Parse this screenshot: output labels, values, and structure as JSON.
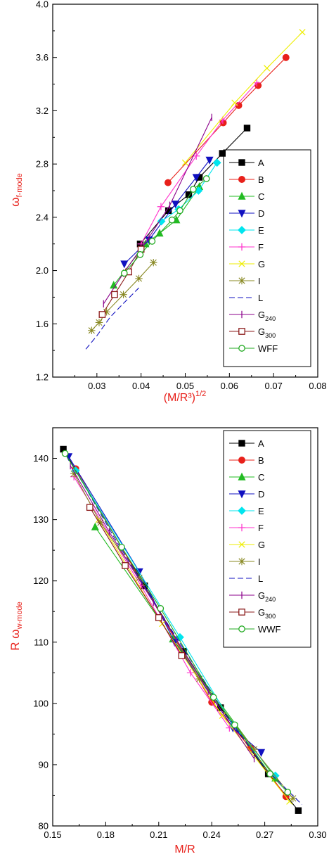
{
  "chart_data": [
    {
      "type": "line",
      "xlabel": "(M/R³)",
      "xlabel_sup": "1/2",
      "ylabel": "ω",
      "ylabel_sub": "f-mode",
      "xlim": [
        0.02,
        0.08
      ],
      "ylim": [
        1.2,
        4.0
      ],
      "xticks": [
        0.03,
        0.04,
        0.05,
        0.06,
        0.07,
        0.08
      ],
      "xtick_labels": [
        "0.03",
        "0.04",
        "0.05",
        "0.06",
        "0.07",
        "0.08"
      ],
      "yticks": [
        1.2,
        1.6,
        2.0,
        2.4,
        2.8,
        3.2,
        3.6,
        4.0
      ],
      "ytick_labels": [
        "1.2",
        "1.6",
        "2.0",
        "2.4",
        "2.8",
        "3.2",
        "3.6",
        "4.0"
      ],
      "legend_position": "right",
      "grid": false,
      "series": [
        {
          "name": "A",
          "sub": "",
          "color": "#000000",
          "marker": "square-filled",
          "x": [
            0.0398,
            0.0462,
            0.0508,
            0.0532,
            0.0584,
            0.064
          ],
          "y": [
            2.2,
            2.45,
            2.57,
            2.7,
            2.88,
            3.07
          ]
        },
        {
          "name": "B",
          "sub": "",
          "color": "#e8201a",
          "marker": "circle-filled",
          "x": [
            0.0461,
            0.0586,
            0.0621,
            0.0665,
            0.0728
          ],
          "y": [
            2.66,
            3.11,
            3.24,
            3.39,
            3.6
          ]
        },
        {
          "name": "C",
          "sub": "",
          "color": "#22bb22",
          "marker": "triangle-up-filled",
          "x": [
            0.0338,
            0.041,
            0.0442,
            0.048,
            0.0532
          ],
          "y": [
            1.89,
            2.2,
            2.28,
            2.38,
            2.63
          ]
        },
        {
          "name": "D",
          "sub": "",
          "color": "#1010c0",
          "marker": "triangle-down-filled",
          "x": [
            0.0362,
            0.0418,
            0.0478,
            0.0525,
            0.0555
          ],
          "y": [
            2.05,
            2.23,
            2.5,
            2.7,
            2.83
          ]
        },
        {
          "name": "E",
          "sub": "",
          "color": "#00e5ee",
          "marker": "diamond-filled",
          "x": [
            0.0446,
            0.0485,
            0.053,
            0.0572
          ],
          "y": [
            2.37,
            2.46,
            2.6,
            2.81
          ]
        },
        {
          "name": "F",
          "sub": "",
          "color": "#ff33cc",
          "marker": "plus",
          "x": [
            0.04,
            0.0445,
            0.0525,
            0.0585,
            0.0662
          ],
          "y": [
            2.2,
            2.48,
            2.86,
            3.13,
            3.41
          ]
        },
        {
          "name": "G",
          "sub": "",
          "color": "#eeee00",
          "marker": "x",
          "x": [
            0.05,
            0.0612,
            0.0685,
            0.0765
          ],
          "y": [
            2.81,
            3.26,
            3.52,
            3.79
          ]
        },
        {
          "name": "I",
          "sub": "",
          "color": "#888822",
          "marker": "star",
          "x": [
            0.0288,
            0.0305,
            0.0322,
            0.036,
            0.0395,
            0.0428
          ],
          "y": [
            1.55,
            1.61,
            1.69,
            1.82,
            1.94,
            2.06
          ]
        },
        {
          "name": "L",
          "sub": "",
          "color": "#1010c0",
          "marker": "hline",
          "x": [
            0.0275,
            0.03,
            0.033,
            0.0362,
            0.0395
          ],
          "y": [
            1.41,
            1.51,
            1.65,
            1.76,
            1.87
          ]
        },
        {
          "name": "G",
          "sub": "240",
          "color": "#8b008b",
          "marker": "vline",
          "x": [
            0.0315,
            0.036,
            0.0418,
            0.0465,
            0.056
          ],
          "y": [
            1.75,
            1.98,
            2.25,
            2.49,
            3.15
          ]
        },
        {
          "name": "G",
          "sub": "300",
          "color": "#8b1a1a",
          "marker": "square-open",
          "x": [
            0.0312,
            0.034,
            0.0372,
            0.04
          ],
          "y": [
            1.67,
            1.82,
            1.99,
            2.16
          ]
        },
        {
          "name": "WFF",
          "sub": "",
          "color": "#22aa22",
          "marker": "circle-open",
          "x": [
            0.0362,
            0.0398,
            0.0425,
            0.047,
            0.0488,
            0.0518,
            0.0548
          ],
          "y": [
            1.98,
            2.12,
            2.22,
            2.38,
            2.45,
            2.61,
            2.69
          ]
        }
      ]
    },
    {
      "type": "line",
      "xlabel": "M/R",
      "xlabel_sup": "",
      "ylabel": "R ω",
      "ylabel_sub": "w-mode",
      "xlim": [
        0.15,
        0.3
      ],
      "ylim": [
        80,
        145
      ],
      "xticks": [
        0.15,
        0.18,
        0.21,
        0.24,
        0.27,
        0.3
      ],
      "xtick_labels": [
        "0.15",
        "0.18",
        "0.21",
        "0.24",
        "0.27",
        "0.30"
      ],
      "yticks": [
        80,
        90,
        100,
        110,
        120,
        130,
        140
      ],
      "ytick_labels": [
        "80",
        "90",
        "100",
        "110",
        "120",
        "130",
        "140"
      ],
      "legend_position": "top-right",
      "grid": false,
      "series": [
        {
          "name": "A",
          "sub": "",
          "color": "#000000",
          "marker": "square-filled",
          "x": [
            0.156,
            0.202,
            0.224,
            0.245,
            0.272,
            0.289
          ],
          "y": [
            141.5,
            119.2,
            108.5,
            99.3,
            88.5,
            82.5
          ]
        },
        {
          "name": "B",
          "sub": "",
          "color": "#e8201a",
          "marker": "circle-filled",
          "x": [
            0.163,
            0.24,
            0.262,
            0.282
          ],
          "y": [
            138.3,
            100.2,
            92.7,
            84.8
          ]
        },
        {
          "name": "C",
          "sub": "",
          "color": "#22bb22",
          "marker": "triangle-up-filled",
          "x": [
            0.174,
            0.218,
            0.276
          ],
          "y": [
            128.8,
            110.5,
            87.8
          ]
        },
        {
          "name": "D",
          "sub": "",
          "color": "#1010c0",
          "marker": "triangle-down-filled",
          "x": [
            0.159,
            0.199,
            0.219,
            0.252,
            0.268
          ],
          "y": [
            140.3,
            121.5,
            110.0,
            96.0,
            92.0
          ]
        },
        {
          "name": "E",
          "sub": "",
          "color": "#00e5ee",
          "marker": "diamond-filled",
          "x": [
            0.163,
            0.222,
            0.252,
            0.276
          ],
          "y": [
            138.0,
            110.8,
            96.5,
            88.2
          ]
        },
        {
          "name": "F",
          "sub": "",
          "color": "#ff33cc",
          "marker": "plus",
          "x": [
            0.162,
            0.2,
            0.228,
            0.25
          ],
          "y": [
            137.0,
            119.2,
            105.0,
            96.0
          ]
        },
        {
          "name": "G",
          "sub": "",
          "color": "#eeee00",
          "marker": "x",
          "x": [
            0.176,
            0.212,
            0.246,
            0.284
          ],
          "y": [
            130.0,
            113.0,
            98.0,
            84.0
          ]
        },
        {
          "name": "I",
          "sub": "",
          "color": "#888822",
          "marker": "star",
          "x": [
            0.162,
            0.177,
            0.199,
            0.233,
            0.264,
            0.286
          ],
          "y": [
            137.5,
            129.5,
            120.5,
            104.0,
            92.5,
            84.5
          ]
        },
        {
          "name": "L",
          "sub": "",
          "color": "#1010c0",
          "marker": "hline",
          "x": [
            0.158,
            0.185,
            0.215,
            0.245,
            0.27,
            0.291
          ],
          "y": [
            140.5,
            127.0,
            113.0,
            99.5,
            89.5,
            83.5
          ]
        },
        {
          "name": "G",
          "sub": "240",
          "color": "#8b008b",
          "marker": "vline",
          "x": [
            0.16,
            0.182,
            0.207,
            0.238,
            0.264
          ],
          "y": [
            138.8,
            128.0,
            116.5,
            102.0,
            91.0
          ]
        },
        {
          "name": "G",
          "sub": "300",
          "color": "#8b1a1a",
          "marker": "square-open",
          "x": [
            0.171,
            0.191,
            0.21,
            0.223
          ],
          "y": [
            132.0,
            122.5,
            114.0,
            107.8
          ]
        },
        {
          "name": "WWF",
          "sub": "",
          "color": "#22aa22",
          "marker": "circle-open",
          "x": [
            0.157,
            0.189,
            0.211,
            0.241,
            0.253,
            0.273,
            0.283
          ],
          "y": [
            140.8,
            125.5,
            115.5,
            101.0,
            96.5,
            88.5,
            85.5
          ]
        }
      ]
    }
  ]
}
